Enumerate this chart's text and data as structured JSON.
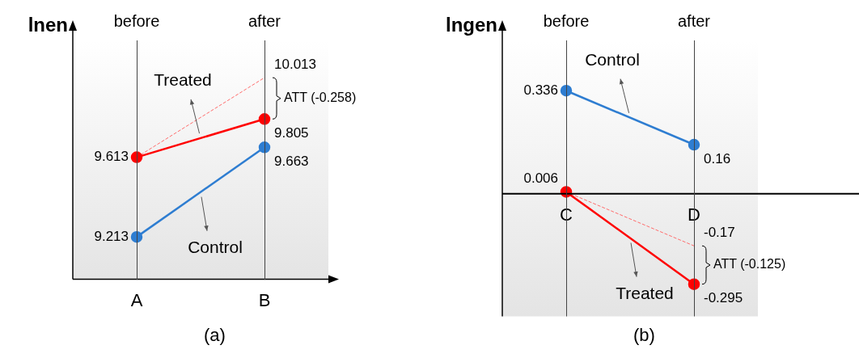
{
  "chart_data": [
    {
      "type": "line",
      "title": "(a)",
      "ylabel": "lnen",
      "categories": [
        "A",
        "B"
      ],
      "grid": "x",
      "tick_labels": "x",
      "marker": "circle",
      "annotations": [
        "before",
        "after",
        "ATT (-0.258)"
      ],
      "series": [
        {
          "name": "Control",
          "color": "#2e7dd1",
          "values": [
            9.213,
            9.663
          ],
          "value_labels": [
            "9.213",
            "9.663"
          ]
        },
        {
          "name": "Treated",
          "color": "#ff0000",
          "values": [
            9.613,
            9.805
          ],
          "value_labels": [
            "9.613",
            "9.805"
          ]
        },
        {
          "color": "#ff6b6b",
          "values": [
            9.613,
            10.013
          ],
          "value_labels": [
            null,
            "10.013"
          ],
          "line_style": "dashed",
          "marker": "none"
        }
      ]
    },
    {
      "type": "line",
      "title": "(b)",
      "ylabel": "lngen",
      "categories": [
        "C",
        "D"
      ],
      "grid": "x",
      "tick_labels": "x",
      "marker": "circle",
      "annotations": [
        "before",
        "after",
        "ATT (-0.125)"
      ],
      "series": [
        {
          "name": "Treated",
          "color": "#ff0000",
          "values": [
            0.006,
            -0.295
          ],
          "value_labels": [
            "0.006",
            "-0.295"
          ]
        },
        {
          "name": "Control",
          "color": "#2e7dd1",
          "values": [
            0.336,
            0.16
          ],
          "value_labels": [
            "0.336",
            "0.16"
          ]
        },
        {
          "color": "#ff6b6b",
          "values": [
            0.006,
            -0.17
          ],
          "value_labels": [
            null,
            "-0.17"
          ],
          "line_style": "dashed",
          "marker": "none"
        }
      ]
    }
  ]
}
